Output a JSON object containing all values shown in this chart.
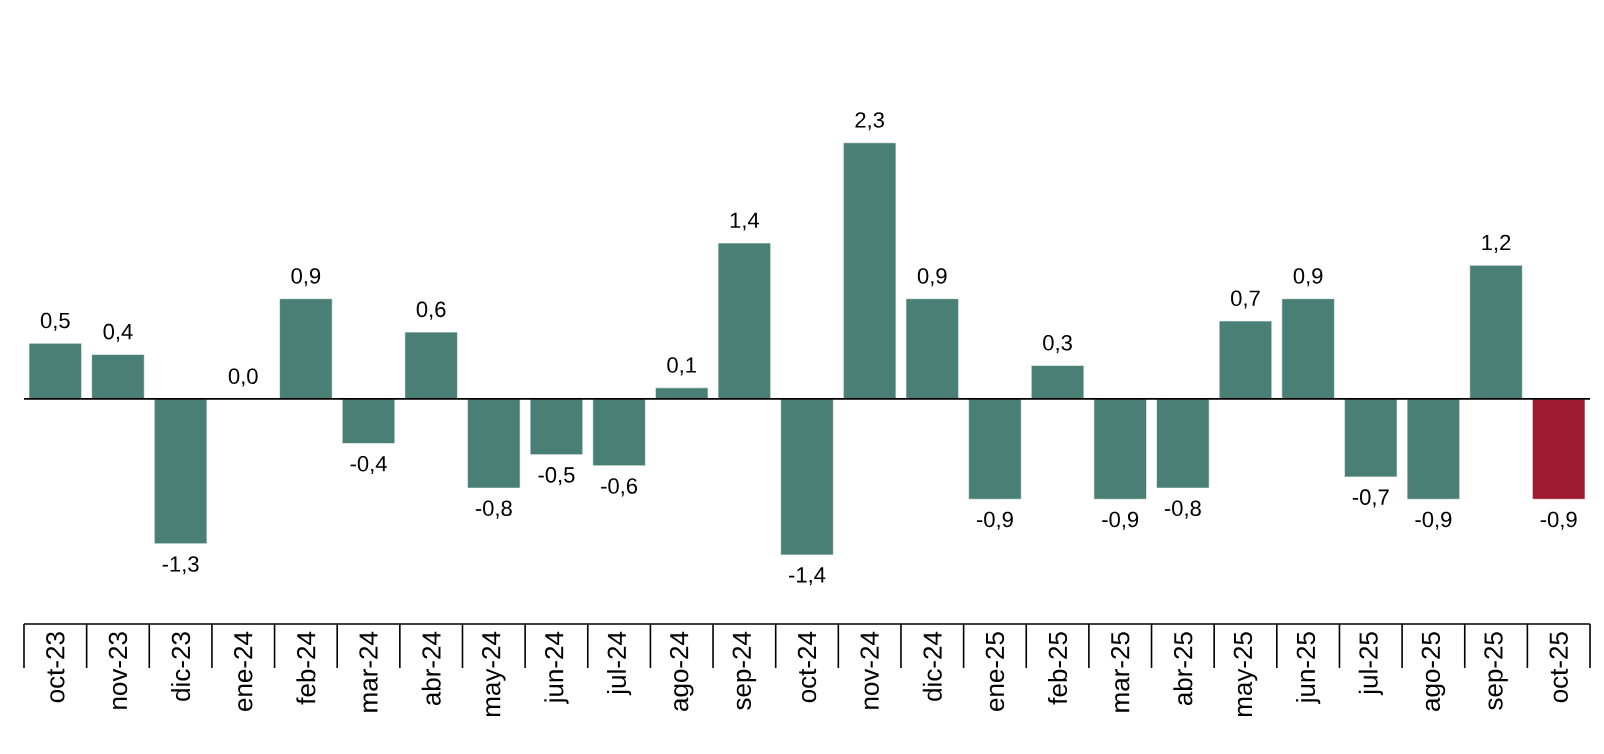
{
  "chart_data": {
    "type": "bar",
    "categories": [
      "oct-23",
      "nov-23",
      "dic-23",
      "ene-24",
      "feb-24",
      "mar-24",
      "abr-24",
      "may-24",
      "jun-24",
      "jul-24",
      "ago-24",
      "sep-24",
      "oct-24",
      "nov-24",
      "dic-24",
      "ene-25",
      "feb-25",
      "mar-25",
      "abr-25",
      "may-25",
      "jun-25",
      "jul-25",
      "ago-25",
      "sep-25",
      "oct-25"
    ],
    "values": [
      0.5,
      0.4,
      -1.3,
      0.0,
      0.9,
      -0.4,
      0.6,
      -0.8,
      -0.5,
      -0.6,
      0.1,
      1.4,
      -1.4,
      2.3,
      0.9,
      -0.9,
      0.3,
      -0.9,
      -0.8,
      0.7,
      0.9,
      -0.7,
      -0.9,
      1.2,
      -0.9
    ],
    "value_labels": [
      "0,5",
      "0,4",
      "-1,3",
      "0,0",
      "0,9",
      "-0,4",
      "0,6",
      "-0,8",
      "-0,5",
      "-0,6",
      "0,1",
      "1,4",
      "-1,4",
      "2,3",
      "0,9",
      "-0,9",
      "0,3",
      "-0,9",
      "-0,8",
      "0,7",
      "0,9",
      "-0,7",
      "-0,9",
      "1,2",
      "-0,9"
    ],
    "colors": [
      "#4a7f76",
      "#4a7f76",
      "#4a7f76",
      "#4a7f76",
      "#4a7f76",
      "#4a7f76",
      "#4a7f76",
      "#4a7f76",
      "#4a7f76",
      "#4a7f76",
      "#4a7f76",
      "#4a7f76",
      "#4a7f76",
      "#4a7f76",
      "#4a7f76",
      "#4a7f76",
      "#4a7f76",
      "#4a7f76",
      "#4a7f76",
      "#4a7f76",
      "#4a7f76",
      "#4a7f76",
      "#4a7f76",
      "#4a7f76",
      "#9e1a30"
    ]
  }
}
